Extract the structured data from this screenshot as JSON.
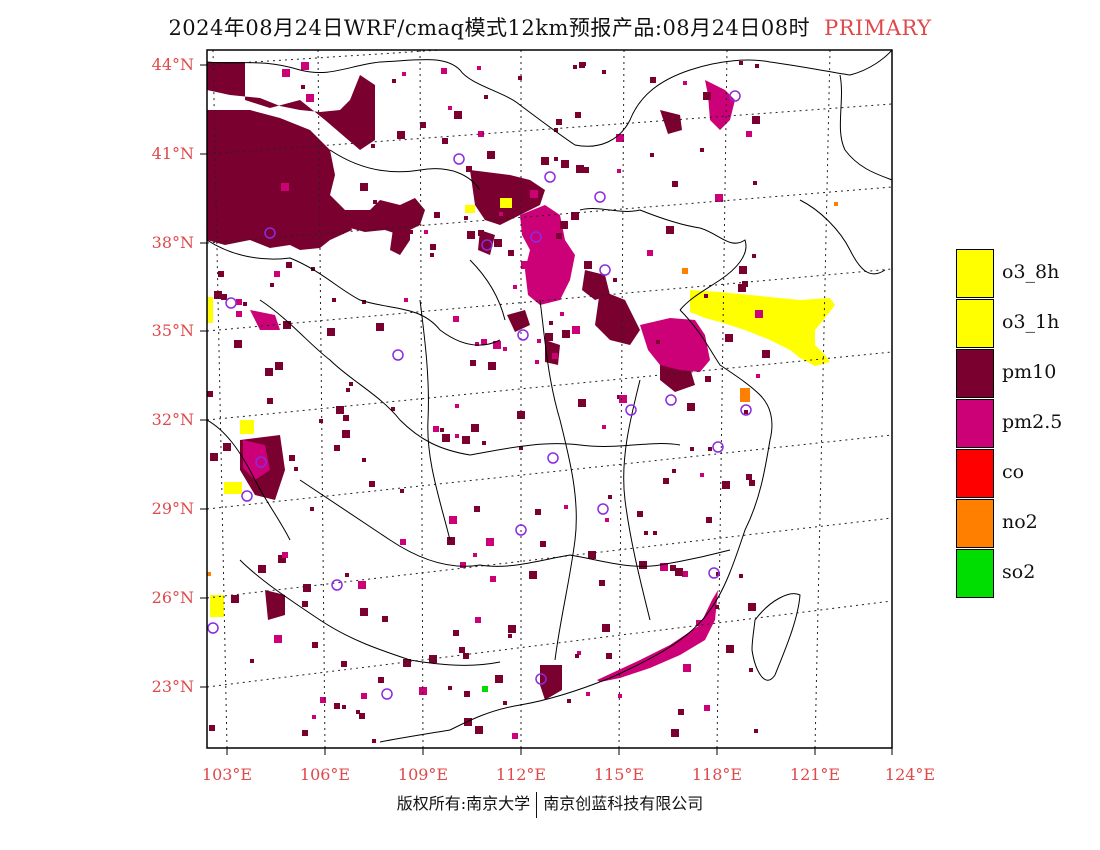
{
  "title": {
    "main": "2024年08月24日WRF/cmaq模式12km预报产品:08月24日08时",
    "tag": "PRIMARY",
    "tag_color": "#e0484a"
  },
  "map": {
    "lat_labels": [
      "44°N",
      "41°N",
      "38°N",
      "35°N",
      "32°N",
      "29°N",
      "26°N",
      "23°N"
    ],
    "lon_labels": [
      "103°E",
      "106°E",
      "109°E",
      "112°E",
      "115°E",
      "118°E",
      "121°E",
      "124°E"
    ],
    "label_color": "#e0484a"
  },
  "legend": [
    {
      "label": "o3_8h",
      "color": "#ffff00"
    },
    {
      "label": "o3_1h",
      "color": "#ffff00"
    },
    {
      "label": "pm10",
      "color": "#7a0030"
    },
    {
      "label": "pm2.5",
      "color": "#cc0077"
    },
    {
      "label": "co",
      "color": "#ff0000"
    },
    {
      "label": "no2",
      "color": "#ff7f00"
    },
    {
      "label": "so2",
      "color": "#00dd00"
    }
  ],
  "footer": {
    "left": "版权所有:南京大学",
    "right": "南京创蓝科技有限公司"
  },
  "colors": {
    "pm10": "#7a0030",
    "pm25": "#cc0077",
    "o3": "#ffff00",
    "no2": "#ff7f00",
    "so2": "#00dd00",
    "station": "#8a2be2"
  }
}
